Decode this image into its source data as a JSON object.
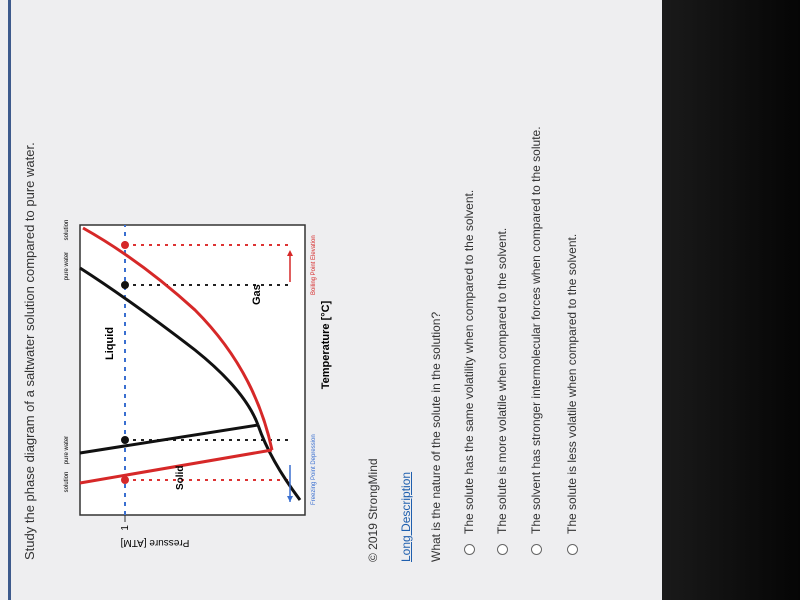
{
  "header": {
    "title": "Study the phase diagram of a saltwater solution compared to pure water."
  },
  "diagram": {
    "y_axis_label": "Pressure [ATM]",
    "y_tick": "1",
    "x_axis_label": "Temperature [°C]",
    "left_top_labels": [
      "solution",
      "pure water"
    ],
    "right_top_labels": [
      "pure water",
      "solution"
    ],
    "regions": {
      "solid": "Solid",
      "liquid": "Liquid",
      "gas": "Gas"
    },
    "freezing_label": "Freezing Point Depression",
    "boiling_label": "Boiling Point Elevation"
  },
  "credit": "© 2019 StrongMind",
  "link": "Long Description",
  "question": "What is the nature of the solute in the solution?",
  "options": [
    "The solute has the same volatility when compared to the solvent.",
    "The solute is more volatile when compared to the solvent.",
    "The solvent has stronger intermolecular forces when compared to the solute.",
    "The solute is less volatile when compared to the solvent."
  ]
}
